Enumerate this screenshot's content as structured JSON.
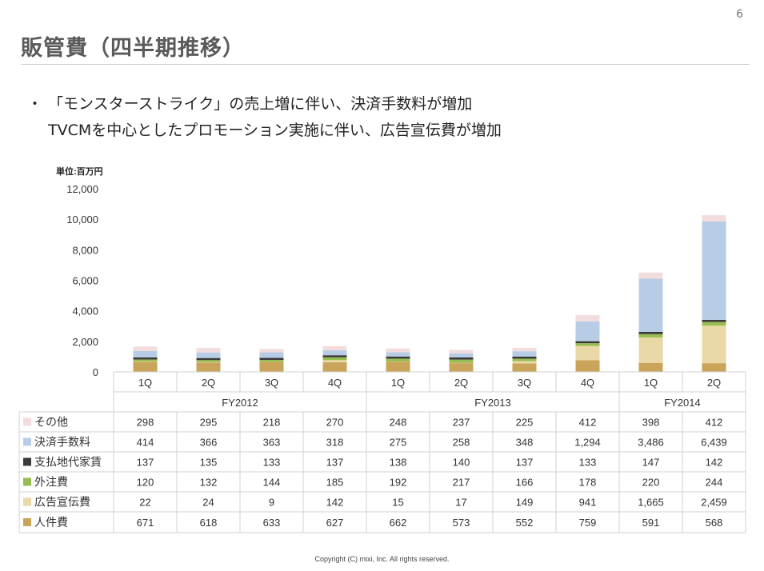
{
  "page_number": "6",
  "title": "販管費（四半期推移）",
  "bullets": {
    "marker": "・",
    "line1": "「モンスターストライク」の売上増に伴い、決済手数料が増加",
    "line2": "TVCMを中心としたプロモーション実施に伴い、広告宣伝費が増加"
  },
  "footer": "Copyright (C) mixi, Inc. All rights reserved.",
  "chart_data": {
    "type": "bar",
    "stacked": true,
    "unit_label": "単位:百万円",
    "ylim": [
      0,
      12000
    ],
    "yticks": [
      "0",
      "2,000",
      "4,000",
      "6,000",
      "8,000",
      "10,000",
      "12,000"
    ],
    "ytick_values": [
      0,
      2000,
      4000,
      6000,
      8000,
      10000,
      12000
    ],
    "categories": [
      "1Q",
      "2Q",
      "3Q",
      "4Q",
      "1Q",
      "2Q",
      "3Q",
      "4Q",
      "1Q",
      "2Q"
    ],
    "groups": [
      {
        "label": "FY2012",
        "count": 4
      },
      {
        "label": "FY2013",
        "count": 4
      },
      {
        "label": "FY2014",
        "count": 2
      }
    ],
    "series": [
      {
        "name": "人件費",
        "color": "#c9a45a",
        "values": [
          671,
          618,
          633,
          627,
          662,
          573,
          552,
          759,
          591,
          568
        ],
        "labels": [
          "671",
          "618",
          "633",
          "627",
          "662",
          "573",
          "552",
          "759",
          "591",
          "568"
        ]
      },
      {
        "name": "広告宣伝費",
        "color": "#ead9a6",
        "values": [
          22,
          24,
          9,
          142,
          15,
          17,
          149,
          941,
          1665,
          2459
        ],
        "labels": [
          "22",
          "24",
          "9",
          "142",
          "15",
          "17",
          "149",
          "941",
          "1,665",
          "2,459"
        ]
      },
      {
        "name": "外注費",
        "color": "#97bd52",
        "values": [
          120,
          132,
          144,
          185,
          192,
          217,
          166,
          178,
          220,
          244
        ],
        "labels": [
          "120",
          "132",
          "144",
          "185",
          "192",
          "217",
          "166",
          "178",
          "220",
          "244"
        ]
      },
      {
        "name": "支払地代家賃",
        "color": "#3a3a3a",
        "values": [
          137,
          135,
          133,
          137,
          138,
          140,
          137,
          133,
          147,
          142
        ],
        "labels": [
          "137",
          "135",
          "133",
          "137",
          "138",
          "140",
          "137",
          "133",
          "147",
          "142"
        ]
      },
      {
        "name": "決済手数料",
        "color": "#b7cde6",
        "values": [
          414,
          366,
          363,
          318,
          275,
          258,
          348,
          1294,
          3486,
          6439
        ],
        "labels": [
          "414",
          "366",
          "363",
          "318",
          "275",
          "258",
          "348",
          "1,294",
          "3,486",
          "6,439"
        ]
      },
      {
        "name": "その他",
        "color": "#f2dcde",
        "values": [
          298,
          295,
          218,
          270,
          248,
          237,
          225,
          412,
          398,
          412
        ],
        "labels": [
          "298",
          "295",
          "218",
          "270",
          "248",
          "237",
          "225",
          "412",
          "398",
          "412"
        ]
      }
    ],
    "table_row_order": [
      "その他",
      "決済手数料",
      "支払地代家賃",
      "外注費",
      "広告宣伝費",
      "人件費"
    ]
  }
}
